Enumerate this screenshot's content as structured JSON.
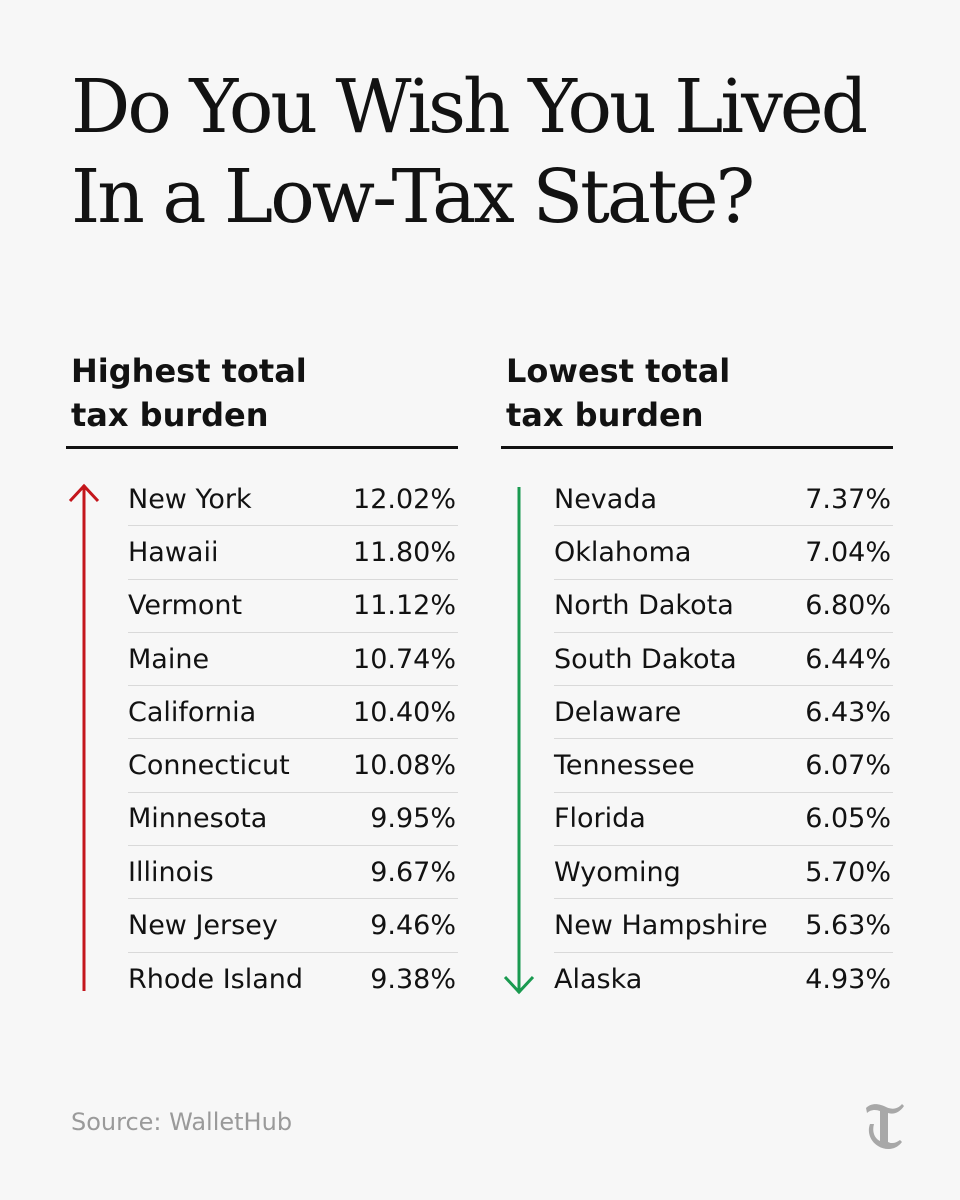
{
  "headline": {
    "line1": "Do You Wish You Lived",
    "line2": "In a Low-Tax State?"
  },
  "highest": {
    "heading_line1": "Highest total",
    "heading_line2": "tax burden",
    "arrow_color": "#c4161c",
    "rows": [
      {
        "state": "New York",
        "pct": "12.02%"
      },
      {
        "state": "Hawaii",
        "pct": "11.80%"
      },
      {
        "state": "Vermont",
        "pct": "11.12%"
      },
      {
        "state": "Maine",
        "pct": "10.74%"
      },
      {
        "state": "California",
        "pct": "10.40%"
      },
      {
        "state": "Connecticut",
        "pct": "10.08%"
      },
      {
        "state": "Minnesota",
        "pct": "9.95%"
      },
      {
        "state": "Illinois",
        "pct": "9.67%"
      },
      {
        "state": "New Jersey",
        "pct": "9.46%"
      },
      {
        "state": "Rhode Island",
        "pct": "9.38%"
      }
    ]
  },
  "lowest": {
    "heading_line1": "Lowest total",
    "heading_line2": "tax burden",
    "arrow_color": "#1a9a50",
    "rows": [
      {
        "state": "Nevada",
        "pct": "7.37%"
      },
      {
        "state": "Oklahoma",
        "pct": "7.04%"
      },
      {
        "state": "North Dakota",
        "pct": "6.80%"
      },
      {
        "state": "South Dakota",
        "pct": "6.44%"
      },
      {
        "state": "Delaware",
        "pct": "6.43%"
      },
      {
        "state": "Tennessee",
        "pct": "6.07%"
      },
      {
        "state": "Florida",
        "pct": "6.05%"
      },
      {
        "state": "Wyoming",
        "pct": "5.70%"
      },
      {
        "state": "New Hampshire",
        "pct": "5.63%"
      },
      {
        "state": "Alaska",
        "pct": "4.93%"
      }
    ]
  },
  "source": "Source: WalletHub",
  "logo_icon": "nyt-t-logo-icon"
}
